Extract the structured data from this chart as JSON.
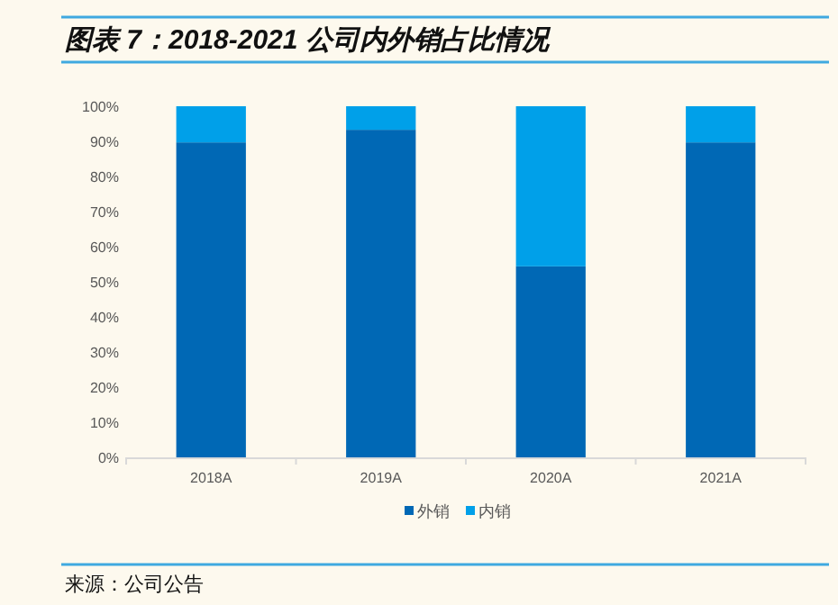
{
  "chart_data": {
    "type": "bar",
    "stacked": true,
    "title": "图表 7：2018-2021 公司内外销占比情况",
    "categories": [
      "2018A",
      "2019A",
      "2020A",
      "2021A"
    ],
    "series": [
      {
        "name": "外销",
        "color": "#0068b5",
        "values": [
          89.7,
          93.3,
          54.4,
          89.7
        ]
      },
      {
        "name": "内销",
        "color": "#00a0e9",
        "values": [
          10.3,
          6.7,
          45.6,
          10.3
        ]
      }
    ],
    "ylim": [
      0,
      100
    ],
    "yticks": [
      {
        "value": 0,
        "label": "0%"
      },
      {
        "value": 10,
        "label": "10%"
      },
      {
        "value": 20,
        "label": "20%"
      },
      {
        "value": 30,
        "label": "30%"
      },
      {
        "value": 40,
        "label": "40%"
      },
      {
        "value": 50,
        "label": "50%"
      },
      {
        "value": 60,
        "label": "60%"
      },
      {
        "value": 70,
        "label": "70%"
      },
      {
        "value": 80,
        "label": "80%"
      },
      {
        "value": 90,
        "label": "90%"
      },
      {
        "value": 100,
        "label": "100%"
      }
    ],
    "grid": false,
    "legend": "bottom",
    "annotations": [
      "来源：公司公告"
    ]
  }
}
